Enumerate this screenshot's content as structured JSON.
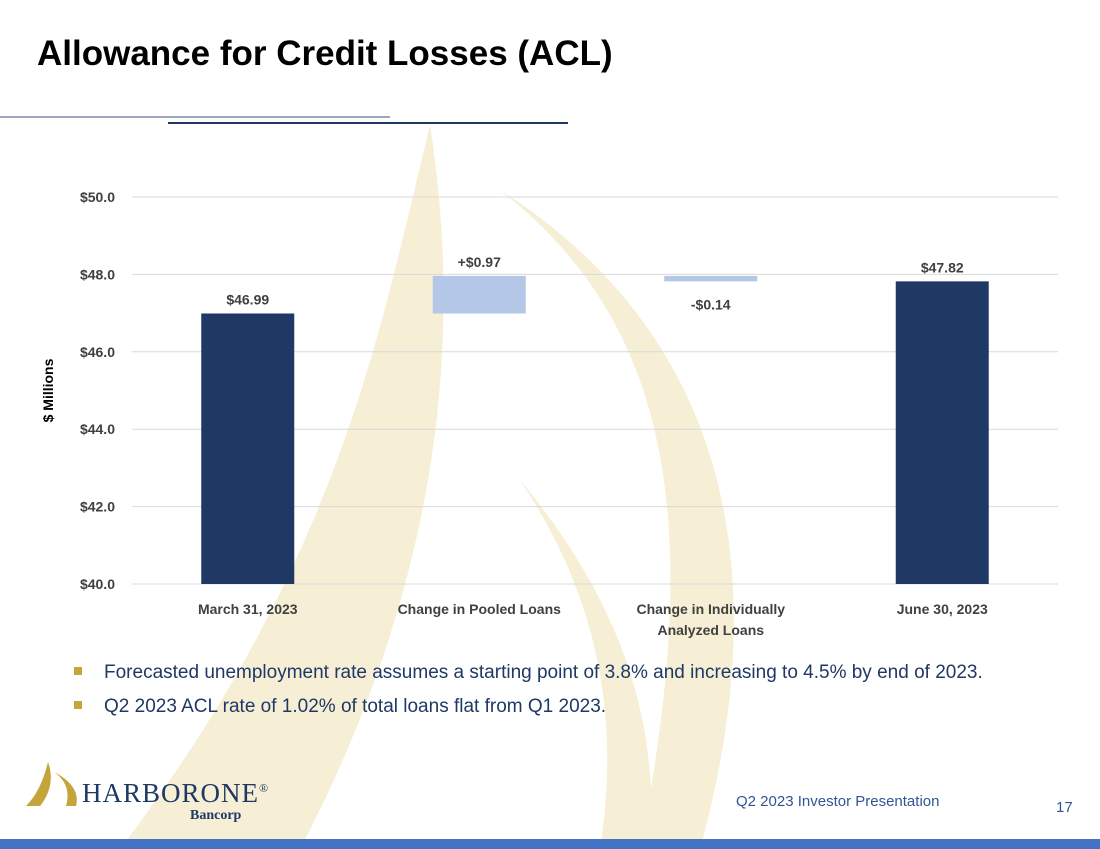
{
  "slide": {
    "title": "Allowance for Credit Losses (ACL)",
    "footer_text": "Q2 2023 Investor Presentation",
    "page_number": "17"
  },
  "chart_data": {
    "type": "bar",
    "subtype": "waterfall",
    "categories": [
      "March 31, 2023",
      "Change in Pooled Loans",
      "Change in Individually Analyzed Loans",
      "June 30, 2023"
    ],
    "category_lines": [
      [
        "March 31, 2023"
      ],
      [
        "Change in Pooled Loans"
      ],
      [
        "Change in Individually",
        "Analyzed Loans"
      ],
      [
        "June 30, 2023"
      ]
    ],
    "bars": [
      {
        "category": "March 31, 2023",
        "kind": "total",
        "start": 40.0,
        "end": 46.99,
        "label": "$46.99",
        "color": "#1f3864"
      },
      {
        "category": "Change in Pooled Loans",
        "kind": "increase",
        "start": 46.99,
        "end": 47.96,
        "label": "+$0.97",
        "color": "#b4c7e7"
      },
      {
        "category": "Change in Individually Analyzed Loans",
        "kind": "decrease",
        "start": 47.96,
        "end": 47.82,
        "label": "-$0.14",
        "color": "#b4c7e7"
      },
      {
        "category": "June 30, 2023",
        "kind": "total",
        "start": 40.0,
        "end": 47.82,
        "label": "$47.82",
        "color": "#1f3864"
      }
    ],
    "ylabel": "$ Millions",
    "ylim": [
      40.0,
      50.0
    ],
    "yticks": [
      40.0,
      42.0,
      44.0,
      46.0,
      48.0,
      50.0
    ],
    "ytick_labels": [
      "$40.0",
      "$42.0",
      "$44.0",
      "$46.0",
      "$48.0",
      "$50.0"
    ],
    "grid": true
  },
  "bullets": [
    "Forecasted unemployment rate assumes a starting point of 3.8% and increasing to 4.5% by end of 2023.",
    "Q2 2023 ACL rate of 1.02% of total loans flat from Q1 2023."
  ],
  "logo": {
    "name_part1": "HARBOR",
    "name_part2": "ONE",
    "mark": "®",
    "sub": "Bancorp",
    "icon": "sail-logo-icon",
    "brand_gold": "#c5a43a",
    "brand_navy": "#1f3864"
  },
  "colors": {
    "navy": "#1f3864",
    "light_blue": "#b4c7e7",
    "accent_blue": "#4472c4",
    "gold": "#c5a43a"
  }
}
